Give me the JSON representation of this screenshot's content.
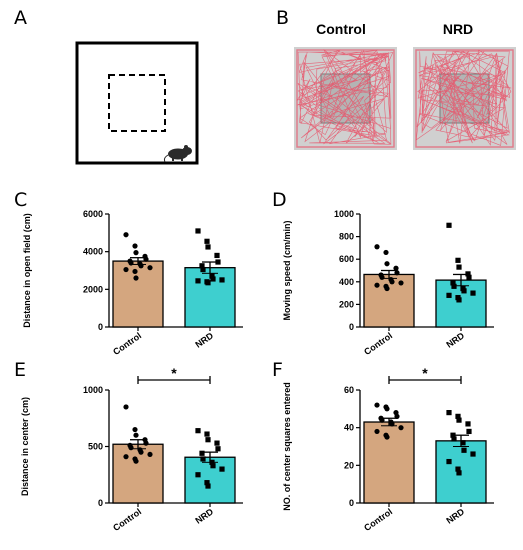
{
  "panels": {
    "A": "A",
    "B": "B"
  },
  "panel_b": {
    "titles": [
      "Control",
      "NRD"
    ]
  },
  "colors": {
    "control": "#d4a67f",
    "nrd": "#3ecfcf",
    "track": "#e8546a",
    "arena": "#c8c8c8"
  },
  "chart_data": [
    {
      "id": "C",
      "type": "bar",
      "letter": "C",
      "categories": [
        "Control",
        "NRD"
      ],
      "values": [
        3500,
        3150
      ],
      "errors": [
        180,
        300
      ],
      "ylabel": "Distance in open field (cm)",
      "ylim": [
        0,
        6000
      ],
      "yticks": [
        0,
        2000,
        4000,
        6000
      ],
      "tick_labels": [
        "0",
        "2000",
        "4000",
        "6000"
      ],
      "points": [
        [
          4900,
          4300,
          3950,
          3750,
          3600,
          3500,
          3400,
          3350,
          3250,
          3150,
          3050,
          2950,
          2600
        ],
        [
          5100,
          4550,
          4250,
          3800,
          3450,
          3250,
          3050,
          2700,
          2550,
          2500,
          2450,
          2400,
          2350
        ]
      ],
      "markers": [
        "circle",
        "square"
      ]
    },
    {
      "id": "D",
      "type": "bar",
      "letter": "D",
      "categories": [
        "Control",
        "NRD"
      ],
      "values": [
        465,
        415
      ],
      "errors": [
        35,
        50
      ],
      "ylabel": "Moving speed (cm/min)",
      "ylim": [
        0,
        1000
      ],
      "yticks": [
        0,
        200,
        400,
        600,
        800,
        1000
      ],
      "tick_labels": [
        "0",
        "200",
        "400",
        "600",
        "800",
        "1000"
      ],
      "points": [
        [
          710,
          660,
          560,
          520,
          480,
          460,
          440,
          420,
          400,
          390,
          370,
          360,
          340
        ],
        [
          900,
          590,
          530,
          470,
          440,
          390,
          360,
          340,
          320,
          300,
          280,
          260,
          240
        ]
      ],
      "markers": [
        "circle",
        "square"
      ]
    },
    {
      "id": "E",
      "type": "bar",
      "letter": "E",
      "categories": [
        "Control",
        "NRD"
      ],
      "values": [
        520,
        405
      ],
      "errors": [
        40,
        45
      ],
      "ylabel": "Distance in center (cm)",
      "ylim": [
        0,
        1000
      ],
      "yticks": [
        0,
        500,
        1000
      ],
      "tick_labels": [
        "0",
        "500",
        "1000"
      ],
      "points": [
        [
          850,
          650,
          600,
          560,
          530,
          510,
          490,
          470,
          450,
          430,
          410,
          390,
          370
        ],
        [
          640,
          610,
          560,
          530,
          480,
          440,
          390,
          360,
          330,
          300,
          250,
          180,
          150
        ]
      ],
      "markers": [
        "circle",
        "square"
      ],
      "significance": "*"
    },
    {
      "id": "F",
      "type": "bar",
      "letter": "F",
      "categories": [
        "Control",
        "NRD"
      ],
      "values": [
        43,
        33
      ],
      "errors": [
        2,
        3
      ],
      "ylabel": "NO. of center squares entered",
      "ylim": [
        0,
        60
      ],
      "yticks": [
        0,
        20,
        40,
        60
      ],
      "tick_labels": [
        "0",
        "20",
        "40",
        "60"
      ],
      "points": [
        [
          52,
          51,
          50,
          48,
          46,
          45,
          44,
          43,
          42,
          40,
          38,
          36,
          35
        ],
        [
          48,
          46,
          44,
          42,
          38,
          36,
          34,
          32,
          28,
          26,
          22,
          18,
          16
        ]
      ],
      "markers": [
        "circle",
        "square"
      ],
      "significance": "*"
    }
  ]
}
